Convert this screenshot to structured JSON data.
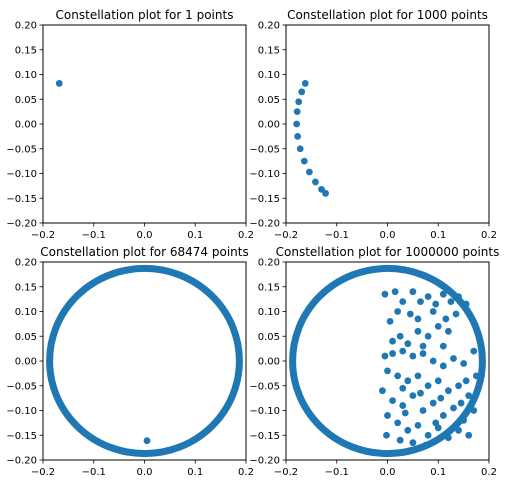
{
  "chart_data": [
    {
      "type": "scatter",
      "title": "Constellation plot for 1 points",
      "xlim": [
        -0.2,
        0.2
      ],
      "ylim": [
        -0.2,
        0.2
      ],
      "xticks": [
        -0.2,
        -0.1,
        0.0,
        0.1,
        0.2
      ],
      "yticks": [
        -0.2,
        -0.15,
        -0.1,
        -0.05,
        0.0,
        0.05,
        0.1,
        0.15,
        0.2
      ],
      "xticklabels": [
        "−0.2",
        "−0.1",
        "0.0",
        "0.1",
        "0.2"
      ],
      "yticklabels": [
        "−0.20",
        "−0.15",
        "−0.10",
        "−0.05",
        "0.00",
        "0.05",
        "0.10",
        "0.15",
        "0.20"
      ],
      "color": "#1f77b4",
      "points": [
        [
          -0.168,
          0.082
        ]
      ]
    },
    {
      "type": "scatter",
      "title": "Constellation plot for 1000 points",
      "xlim": [
        -0.2,
        0.2
      ],
      "ylim": [
        -0.2,
        0.2
      ],
      "xticks": [
        -0.2,
        -0.1,
        0.0,
        0.1,
        0.2
      ],
      "yticks": [
        -0.2,
        -0.15,
        -0.1,
        -0.05,
        0.0,
        0.05,
        0.1,
        0.15,
        0.2
      ],
      "xticklabels": [
        "−0.2",
        "−0.1",
        "0.0",
        "0.1",
        "0.2"
      ],
      "yticklabels": [
        "−0.20",
        "−0.15",
        "−0.10",
        "−0.05",
        "0.00",
        "0.05",
        "0.10",
        "0.15",
        "0.20"
      ],
      "color": "#1f77b4",
      "points": [
        [
          -0.162,
          0.082
        ],
        [
          -0.169,
          0.065
        ],
        [
          -0.175,
          0.045
        ],
        [
          -0.178,
          0.025
        ],
        [
          -0.179,
          0.0
        ],
        [
          -0.177,
          -0.025
        ],
        [
          -0.172,
          -0.05
        ],
        [
          -0.164,
          -0.075
        ],
        [
          -0.154,
          -0.097
        ],
        [
          -0.142,
          -0.117
        ],
        [
          -0.13,
          -0.132
        ],
        [
          -0.122,
          -0.14
        ]
      ]
    },
    {
      "type": "scatter",
      "title": "Constellation plot for 68474 points",
      "xlim": [
        -0.2,
        0.2
      ],
      "ylim": [
        -0.2,
        0.2
      ],
      "xticks": [
        -0.2,
        -0.1,
        0.0,
        0.1,
        0.2
      ],
      "yticks": [
        -0.2,
        -0.15,
        -0.1,
        -0.05,
        0.0,
        0.05,
        0.1,
        0.15,
        0.2
      ],
      "xticklabels": [
        "−0.2",
        "−0.1",
        "0.0",
        "0.1",
        "0.2"
      ],
      "yticklabels": [
        "−0.20",
        "−0.15",
        "−0.10",
        "−0.05",
        "0.00",
        "0.05",
        "0.10",
        "0.15",
        "0.20"
      ],
      "color": "#1f77b4",
      "ring": {
        "center": [
          0.0,
          0.0
        ],
        "radius": 0.187
      },
      "points": [
        [
          0.005,
          -0.161
        ]
      ]
    },
    {
      "type": "scatter",
      "title": "Constellation plot for 1000000 points",
      "xlim": [
        -0.2,
        0.2
      ],
      "ylim": [
        -0.2,
        0.2
      ],
      "xticks": [
        -0.2,
        -0.1,
        0.0,
        0.1,
        0.2
      ],
      "yticks": [
        -0.2,
        -0.15,
        -0.1,
        -0.05,
        0.0,
        0.05,
        0.1,
        0.15,
        0.2
      ],
      "xticklabels": [
        "−0.2",
        "−0.1",
        "0.0",
        "0.1",
        "0.2"
      ],
      "yticklabels": [
        "−0.20",
        "−0.15",
        "−0.10",
        "−0.05",
        "0.00",
        "0.05",
        "0.10",
        "0.15",
        "0.20"
      ],
      "color": "#1f77b4",
      "ring": {
        "center": [
          0.0,
          0.0
        ],
        "radius": 0.187
      },
      "points": [
        [
          -0.005,
          0.135
        ],
        [
          0.015,
          0.14
        ],
        [
          0.03,
          0.12
        ],
        [
          0.05,
          0.14
        ],
        [
          0.065,
          0.12
        ],
        [
          0.08,
          0.13
        ],
        [
          0.095,
          0.115
        ],
        [
          0.11,
          0.135
        ],
        [
          0.125,
          0.12
        ],
        [
          0.14,
          0.13
        ],
        [
          0.155,
          0.115
        ],
        [
          0.02,
          0.1
        ],
        [
          0.045,
          0.095
        ],
        [
          0.06,
          0.085
        ],
        [
          0.09,
          0.1
        ],
        [
          0.115,
          0.085
        ],
        [
          0.135,
          0.095
        ],
        [
          0.1,
          0.07
        ],
        [
          0.06,
          0.06
        ],
        [
          0.025,
          0.05
        ],
        [
          0.005,
          0.08
        ],
        [
          0.04,
          0.035
        ],
        [
          0.08,
          0.05
        ],
        [
          0.12,
          0.06
        ],
        [
          -0.005,
          0.01
        ],
        [
          0.01,
          0.015
        ],
        [
          0.03,
          0.02
        ],
        [
          0.05,
          0.01
        ],
        [
          0.07,
          0.015
        ],
        [
          0.09,
          0.0
        ],
        [
          0.11,
          -0.01
        ],
        [
          0.13,
          0.005
        ],
        [
          0.15,
          -0.005
        ],
        [
          0.0,
          -0.02
        ],
        [
          0.02,
          -0.03
        ],
        [
          0.04,
          -0.04
        ],
        [
          0.06,
          -0.03
        ],
        [
          0.08,
          -0.05
        ],
        [
          0.1,
          -0.04
        ],
        [
          0.12,
          -0.06
        ],
        [
          0.14,
          -0.05
        ],
        [
          0.16,
          -0.07
        ],
        [
          -0.01,
          -0.06
        ],
        [
          0.01,
          -0.08
        ],
        [
          0.03,
          -0.09
        ],
        [
          0.05,
          -0.07
        ],
        [
          0.07,
          -0.1
        ],
        [
          0.09,
          -0.085
        ],
        [
          0.11,
          -0.11
        ],
        [
          0.13,
          -0.095
        ],
        [
          0.15,
          -0.12
        ],
        [
          0.17,
          -0.1
        ],
        [
          0.0,
          -0.11
        ],
        [
          0.02,
          -0.125
        ],
        [
          0.04,
          -0.14
        ],
        [
          0.06,
          -0.13
        ],
        [
          0.08,
          -0.15
        ],
        [
          0.1,
          -0.135
        ],
        [
          0.12,
          -0.155
        ],
        [
          0.14,
          -0.14
        ],
        [
          0.16,
          -0.15
        ],
        [
          -0.002,
          -0.15
        ],
        [
          0.025,
          -0.16
        ],
        [
          0.05,
          -0.165
        ],
        [
          0.075,
          -0.17
        ],
        [
          0.03,
          -0.055
        ],
        [
          0.065,
          -0.065
        ],
        [
          0.105,
          -0.075
        ],
        [
          0.145,
          -0.085
        ],
        [
          0.035,
          -0.105
        ],
        [
          0.095,
          -0.125
        ],
        [
          0.155,
          -0.04
        ],
        [
          0.175,
          -0.03
        ],
        [
          0.17,
          0.02
        ],
        [
          0.01,
          0.04
        ],
        [
          0.07,
          0.03
        ],
        [
          0.11,
          0.03
        ]
      ]
    }
  ]
}
